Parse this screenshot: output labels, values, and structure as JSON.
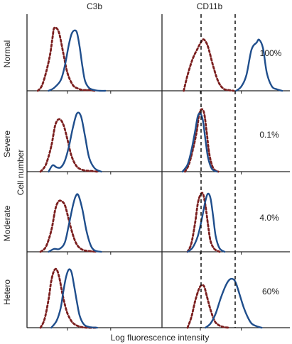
{
  "chart_data": [
    {
      "panel": "Normal / C3b",
      "type": "line",
      "series": [
        {
          "style": "dashed",
          "color": "#7b1f1f",
          "x": [
            0.08,
            0.11,
            0.14,
            0.17,
            0.19,
            0.2,
            0.22,
            0.24,
            0.27,
            0.3,
            0.34,
            0.38,
            0.42,
            0.46,
            0.5
          ],
          "y": [
            0.0,
            0.07,
            0.25,
            0.5,
            0.76,
            0.88,
            0.88,
            0.8,
            0.52,
            0.25,
            0.08,
            0.03,
            0.01,
            0.01,
            0.0
          ]
        },
        {
          "style": "solid",
          "color": "#1f4e8c",
          "x": [
            0.16,
            0.2,
            0.25,
            0.28,
            0.31,
            0.33,
            0.35,
            0.37,
            0.39,
            0.41,
            0.43,
            0.46,
            0.5,
            0.54,
            0.58
          ],
          "y": [
            0.0,
            0.04,
            0.15,
            0.35,
            0.65,
            0.8,
            0.85,
            0.82,
            0.62,
            0.35,
            0.14,
            0.04,
            0.01,
            0.0,
            0.0
          ]
        }
      ]
    },
    {
      "panel": "Normal / CD11b",
      "type": "line",
      "series": [
        {
          "style": "dashed",
          "color": "#7b1f1f",
          "x": [
            0.17,
            0.2,
            0.24,
            0.28,
            0.31,
            0.33,
            0.36,
            0.4,
            0.44,
            0.48,
            0.52,
            0.56
          ],
          "y": [
            0.0,
            0.22,
            0.45,
            0.6,
            0.7,
            0.72,
            0.62,
            0.35,
            0.13,
            0.03,
            0.01,
            0.0
          ]
        },
        {
          "style": "solid",
          "color": "#1f4e8c",
          "x": [
            0.58,
            0.62,
            0.66,
            0.7,
            0.74,
            0.76,
            0.79,
            0.82,
            0.86,
            0.9,
            0.94
          ],
          "y": [
            0.0,
            0.06,
            0.22,
            0.58,
            0.68,
            0.72,
            0.6,
            0.25,
            0.06,
            0.02,
            0.0
          ]
        }
      ]
    },
    {
      "panel": "Severe / C3b",
      "type": "line",
      "series": [
        {
          "style": "dashed",
          "color": "#7b1f1f",
          "x": [
            0.1,
            0.14,
            0.18,
            0.21,
            0.24,
            0.27,
            0.3,
            0.33,
            0.37,
            0.42,
            0.47,
            0.52
          ],
          "y": [
            0.0,
            0.1,
            0.36,
            0.66,
            0.74,
            0.66,
            0.45,
            0.22,
            0.07,
            0.02,
            0.01,
            0.0
          ]
        },
        {
          "style": "solid",
          "color": "#1f4e8c",
          "x": [
            0.16,
            0.19,
            0.22,
            0.25,
            0.28,
            0.31,
            0.34,
            0.37,
            0.4,
            0.43,
            0.46,
            0.5,
            0.55
          ],
          "y": [
            0.0,
            0.09,
            0.06,
            0.06,
            0.15,
            0.35,
            0.62,
            0.82,
            0.78,
            0.5,
            0.2,
            0.05,
            0.0
          ]
        }
      ]
    },
    {
      "panel": "Severe / CD11b",
      "type": "line",
      "series": [
        {
          "style": "dashed",
          "color": "#7b1f1f",
          "x": [
            0.18,
            0.21,
            0.24,
            0.27,
            0.29,
            0.31,
            0.33,
            0.35,
            0.37,
            0.4,
            0.44
          ],
          "y": [
            0.0,
            0.1,
            0.3,
            0.55,
            0.8,
            0.88,
            0.82,
            0.55,
            0.25,
            0.05,
            0.0
          ]
        },
        {
          "style": "solid",
          "color": "#1f4e8c",
          "x": [
            0.16,
            0.2,
            0.23,
            0.26,
            0.28,
            0.3,
            0.32,
            0.34,
            0.36,
            0.39,
            0.43
          ],
          "y": [
            0.0,
            0.1,
            0.3,
            0.58,
            0.78,
            0.82,
            0.72,
            0.45,
            0.2,
            0.04,
            0.0
          ]
        }
      ]
    },
    {
      "panel": "Moderate / C3b",
      "type": "line",
      "series": [
        {
          "style": "dashed",
          "color": "#7b1f1f",
          "x": [
            0.1,
            0.14,
            0.18,
            0.21,
            0.23,
            0.25,
            0.28,
            0.31,
            0.34,
            0.37,
            0.41,
            0.46,
            0.52
          ],
          "y": [
            0.0,
            0.07,
            0.3,
            0.6,
            0.7,
            0.72,
            0.66,
            0.45,
            0.24,
            0.1,
            0.03,
            0.01,
            0.0
          ]
        },
        {
          "style": "solid",
          "color": "#1f4e8c",
          "x": [
            0.16,
            0.2,
            0.24,
            0.28,
            0.31,
            0.34,
            0.36,
            0.38,
            0.41,
            0.44,
            0.47,
            0.5,
            0.55
          ],
          "y": [
            0.0,
            0.04,
            0.04,
            0.13,
            0.38,
            0.65,
            0.78,
            0.8,
            0.6,
            0.3,
            0.1,
            0.02,
            0.0
          ]
        }
      ]
    },
    {
      "panel": "Moderate / CD11b",
      "type": "line",
      "series": [
        {
          "style": "dashed",
          "color": "#7b1f1f",
          "x": [
            0.2,
            0.23,
            0.26,
            0.28,
            0.3,
            0.32,
            0.34,
            0.36,
            0.38,
            0.41,
            0.45
          ],
          "y": [
            0.0,
            0.12,
            0.42,
            0.68,
            0.8,
            0.82,
            0.65,
            0.38,
            0.15,
            0.04,
            0.0
          ]
        },
        {
          "style": "solid",
          "color": "#1f4e8c",
          "x": [
            0.2,
            0.24,
            0.28,
            0.31,
            0.34,
            0.36,
            0.38,
            0.4,
            0.42,
            0.45,
            0.49
          ],
          "y": [
            0.0,
            0.06,
            0.22,
            0.45,
            0.72,
            0.82,
            0.75,
            0.5,
            0.22,
            0.05,
            0.0
          ]
        }
      ]
    },
    {
      "panel": "Hetero / C3b",
      "type": "line",
      "series": [
        {
          "style": "dashed",
          "color": "#7b1f1f",
          "x": [
            0.1,
            0.13,
            0.16,
            0.18,
            0.2,
            0.22,
            0.24,
            0.26,
            0.28,
            0.3,
            0.33,
            0.36,
            0.4,
            0.45,
            0.52
          ],
          "y": [
            0.0,
            0.12,
            0.4,
            0.66,
            0.8,
            0.82,
            0.7,
            0.5,
            0.33,
            0.2,
            0.09,
            0.04,
            0.01,
            0.0,
            0.0
          ]
        },
        {
          "style": "solid",
          "color": "#1f4e8c",
          "x": [
            0.18,
            0.22,
            0.25,
            0.27,
            0.29,
            0.31,
            0.33,
            0.35,
            0.37,
            0.39,
            0.42,
            0.46,
            0.52
          ],
          "y": [
            0.0,
            0.1,
            0.28,
            0.52,
            0.72,
            0.82,
            0.78,
            0.58,
            0.36,
            0.17,
            0.05,
            0.01,
            0.0
          ]
        }
      ]
    },
    {
      "panel": "Hetero / CD11b",
      "type": "line",
      "series": [
        {
          "style": "dashed",
          "color": "#7b1f1f",
          "x": [
            0.2,
            0.23,
            0.26,
            0.29,
            0.31,
            0.33,
            0.35,
            0.38,
            0.41,
            0.44,
            0.48,
            0.52
          ],
          "y": [
            0.0,
            0.15,
            0.38,
            0.55,
            0.6,
            0.58,
            0.45,
            0.25,
            0.1,
            0.04,
            0.01,
            0.0
          ]
        },
        {
          "style": "solid",
          "color": "#1f4e8c",
          "x": [
            0.34,
            0.38,
            0.42,
            0.46,
            0.5,
            0.53,
            0.56,
            0.58,
            0.61,
            0.64,
            0.67,
            0.7,
            0.74,
            0.78
          ],
          "y": [
            0.0,
            0.06,
            0.2,
            0.42,
            0.6,
            0.68,
            0.68,
            0.62,
            0.45,
            0.28,
            0.15,
            0.06,
            0.02,
            0.0
          ]
        }
      ]
    }
  ],
  "figure": {
    "column_titles": [
      "C3b",
      "CD11b"
    ],
    "row_labels": [
      "Normal",
      "Severe",
      "Moderate",
      "Hetero"
    ],
    "percentages": [
      "100%",
      "0.1%",
      "4.0%",
      "60%"
    ],
    "xlabel": "Log fluorescence intensity",
    "ylabel": "Cell number",
    "colors": {
      "dashed": "#7b1f1f",
      "solid": "#1f4e8c",
      "axis": "#222222"
    }
  }
}
